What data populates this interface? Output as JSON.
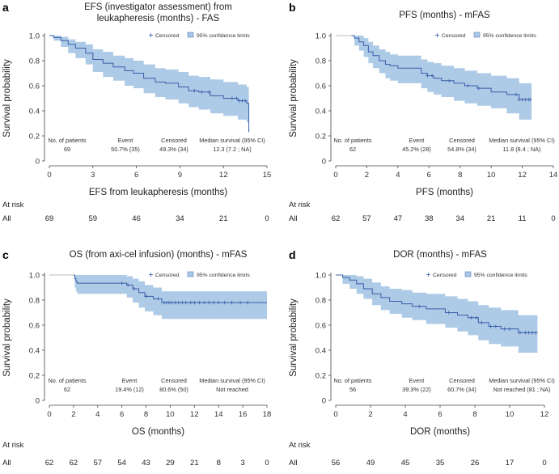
{
  "chart_data": [
    {
      "type": "line",
      "panel_letter": "a",
      "title_lines": [
        "EFS (investigator assessment) from",
        "leukapheresis (months) - FAS"
      ],
      "xlabel": "EFS from leukapheresis (months)",
      "ylabel": "Survival probability",
      "xlim": [
        0,
        15
      ],
      "xticks": [
        0,
        3,
        6,
        9,
        12,
        15
      ],
      "ylim": [
        0,
        1
      ],
      "yticks": [
        "0",
        "0.2",
        "0.4",
        "0.6",
        "0.8",
        "1.0"
      ],
      "legend": {
        "censored": "Censored",
        "ci": "95% confidence limits"
      },
      "colors": {
        "line": "#3a5fa8",
        "band": "#a9c7e6",
        "ref": "#bdbdbd"
      },
      "series": {
        "name": "Kaplan-Meier estimate",
        "x": [
          0,
          0.3,
          0.8,
          1.3,
          1.8,
          2.5,
          3.0,
          3.7,
          4.4,
          5.2,
          5.8,
          6.5,
          7.3,
          8.0,
          8.9,
          9.6,
          10.3,
          11.1,
          12.0,
          13.0,
          13.6,
          13.75
        ],
        "y": [
          1.0,
          0.985,
          0.96,
          0.93,
          0.9,
          0.86,
          0.81,
          0.78,
          0.75,
          0.72,
          0.7,
          0.66,
          0.63,
          0.62,
          0.59,
          0.56,
          0.55,
          0.52,
          0.5,
          0.48,
          0.46,
          0.23
        ],
        "ci_lower": [
          1.0,
          0.96,
          0.91,
          0.86,
          0.82,
          0.77,
          0.71,
          0.67,
          0.64,
          0.6,
          0.58,
          0.54,
          0.51,
          0.49,
          0.46,
          0.43,
          0.41,
          0.38,
          0.36,
          0.33,
          0.31,
          0.1
        ],
        "ci_upper": [
          1.0,
          1.0,
          0.99,
          0.97,
          0.95,
          0.93,
          0.89,
          0.87,
          0.84,
          0.82,
          0.8,
          0.77,
          0.74,
          0.73,
          0.71,
          0.68,
          0.67,
          0.65,
          0.63,
          0.61,
          0.59,
          0.45
        ],
        "censored_x": [
          10.0,
          10.5,
          11.0,
          12.6,
          12.9,
          13.1,
          13.3,
          13.5
        ]
      },
      "stats": {
        "headers": [
          "No. of patients",
          "Event",
          "Censored",
          "Median survival (95% CI)"
        ],
        "values": [
          "69",
          "50.7% (35)",
          "49.3% (34)",
          "12.3 (7.2 ; NA)"
        ]
      },
      "at_risk": {
        "title": "At risk",
        "group": "All",
        "values": [
          "69",
          "59",
          "46",
          "34",
          "21",
          "0"
        ]
      }
    },
    {
      "type": "line",
      "panel_letter": "b",
      "title_lines": [
        "PFS (months) - mFAS"
      ],
      "xlabel": "PFS (months)",
      "ylabel": "Survival probability",
      "xlim": [
        0,
        14
      ],
      "xticks": [
        0,
        2,
        4,
        6,
        8,
        10,
        12,
        14
      ],
      "ylim": [
        0,
        1
      ],
      "yticks": [
        "0",
        "0.2",
        "0.4",
        "0.6",
        "0.8",
        "1.0"
      ],
      "legend": {
        "censored": "Censored",
        "ci": "95% confidence limits"
      },
      "colors": {
        "line": "#3a5fa8",
        "band": "#a9c7e6",
        "ref": "#bdbdbd"
      },
      "series": {
        "name": "Kaplan-Meier estimate",
        "x": [
          1.0,
          1.2,
          1.5,
          1.8,
          2.1,
          2.4,
          2.8,
          3.2,
          3.5,
          4.0,
          5.5,
          5.9,
          6.3,
          6.8,
          7.6,
          8.3,
          9.1,
          10.0,
          11.0,
          11.8,
          12.6
        ],
        "y": [
          1.0,
          0.98,
          0.95,
          0.92,
          0.87,
          0.84,
          0.8,
          0.77,
          0.76,
          0.74,
          0.7,
          0.68,
          0.66,
          0.64,
          0.62,
          0.6,
          0.58,
          0.55,
          0.53,
          0.49,
          0.49
        ],
        "ci_lower": [
          1.0,
          0.92,
          0.88,
          0.83,
          0.78,
          0.74,
          0.7,
          0.66,
          0.64,
          0.62,
          0.58,
          0.55,
          0.53,
          0.51,
          0.48,
          0.46,
          0.44,
          0.42,
          0.38,
          0.33,
          0.33
        ],
        "ci_upper": [
          1.0,
          1.0,
          1.0,
          0.98,
          0.95,
          0.92,
          0.89,
          0.87,
          0.85,
          0.84,
          0.81,
          0.79,
          0.78,
          0.76,
          0.74,
          0.72,
          0.7,
          0.68,
          0.66,
          0.62,
          0.62
        ],
        "censored_x": [
          5.9,
          6.2,
          7.3,
          8.5,
          9.2,
          11.6,
          11.8,
          12.0,
          12.2,
          12.4,
          12.5
        ]
      },
      "stats": {
        "headers": [
          "No. of patients",
          "Event",
          "Censored",
          "Median survival (95% CI)"
        ],
        "values": [
          "62",
          "45.2% (28)",
          "54.8% (34)",
          "11.8 (8.4 ; NA)"
        ]
      },
      "at_risk": {
        "title": "At risk",
        "group": "All",
        "values": [
          "62",
          "57",
          "47",
          "38",
          "34",
          "21",
          "11",
          "0"
        ]
      }
    },
    {
      "type": "line",
      "panel_letter": "c",
      "title_lines": [
        "OS (from axi-cel infusion) (months) - mFAS"
      ],
      "xlabel": "OS (months)",
      "ylabel": "Survival probability",
      "xlim": [
        0,
        18
      ],
      "xticks": [
        0,
        2,
        4,
        6,
        8,
        10,
        12,
        14,
        16,
        18
      ],
      "ylim": [
        0,
        1
      ],
      "yticks": [
        "0",
        "0.2",
        "0.4",
        "0.6",
        "0.8",
        "1.0"
      ],
      "legend": {
        "censored": "Censored",
        "ci": "95% confidence limits"
      },
      "colors": {
        "line": "#3a5fa8",
        "band": "#a9c7e6",
        "ref": "#bdbdbd"
      },
      "series": {
        "name": "Kaplan-Meier estimate",
        "x": [
          2.0,
          2.1,
          2.2,
          2.3,
          6.4,
          6.9,
          7.4,
          7.9,
          8.6,
          9.3,
          18.0
        ],
        "y": [
          1.0,
          0.97,
          0.95,
          0.935,
          0.92,
          0.89,
          0.86,
          0.83,
          0.81,
          0.78,
          0.78
        ],
        "ci_lower": [
          1.0,
          0.9,
          0.87,
          0.85,
          0.82,
          0.78,
          0.74,
          0.71,
          0.68,
          0.65,
          0.65
        ],
        "ci_upper": [
          1.0,
          1.0,
          1.0,
          1.0,
          0.99,
          0.97,
          0.95,
          0.92,
          0.9,
          0.87,
          0.87
        ],
        "censored_x": [
          6.0,
          6.5,
          7.0,
          8.0,
          9.0,
          9.5,
          9.7,
          9.9,
          10.1,
          10.4,
          10.7,
          11.0,
          11.3,
          11.7,
          12.0,
          12.4,
          12.8,
          13.2,
          13.6,
          14.0,
          14.5,
          15.1,
          15.8,
          16.4
        ]
      },
      "stats": {
        "headers": [
          "No. of patients",
          "Event",
          "Censored",
          "Median survival (95% CI)"
        ],
        "values": [
          "62",
          "19.4% (12)",
          "80.6% (50)",
          "Not reached"
        ]
      },
      "at_risk": {
        "title": "At risk",
        "group": "All",
        "values": [
          "62",
          "62",
          "57",
          "54",
          "43",
          "29",
          "21",
          "8",
          "3",
          "0"
        ]
      }
    },
    {
      "type": "line",
      "panel_letter": "d",
      "title_lines": [
        "DOR (months) - mFAS"
      ],
      "xlabel": "DOR (months)",
      "ylabel": "Survival probability",
      "xlim": [
        0,
        12
      ],
      "xticks": [
        0,
        2,
        4,
        6,
        8,
        10,
        12
      ],
      "ylim": [
        0,
        1
      ],
      "yticks": [
        "0",
        "0.2",
        "0.4",
        "0.6",
        "0.8",
        "1.0"
      ],
      "legend": {
        "censored": "Censored",
        "ci": "95% confidence limits"
      },
      "colors": {
        "line": "#3a5fa8",
        "band": "#a9c7e6",
        "ref": "#bdbdbd"
      },
      "series": {
        "name": "Kaplan-Meier estimate",
        "x": [
          0,
          0.4,
          0.8,
          1.2,
          1.6,
          2.1,
          2.6,
          3.1,
          3.8,
          4.4,
          5.2,
          6.3,
          7.0,
          7.6,
          8.2,
          8.8,
          9.5,
          10.5,
          11.6
        ],
        "y": [
          1.0,
          0.98,
          0.96,
          0.93,
          0.89,
          0.85,
          0.82,
          0.79,
          0.77,
          0.75,
          0.73,
          0.7,
          0.68,
          0.66,
          0.62,
          0.59,
          0.57,
          0.54,
          0.54
        ],
        "ci_lower": [
          1.0,
          0.93,
          0.89,
          0.85,
          0.81,
          0.76,
          0.72,
          0.69,
          0.66,
          0.64,
          0.61,
          0.58,
          0.55,
          0.52,
          0.48,
          0.45,
          0.43,
          0.38,
          0.38
        ],
        "ci_upper": [
          1.0,
          1.0,
          1.0,
          0.99,
          0.97,
          0.94,
          0.91,
          0.89,
          0.88,
          0.86,
          0.85,
          0.83,
          0.81,
          0.79,
          0.76,
          0.74,
          0.72,
          0.68,
          0.68
        ],
        "censored_x": [
          4.8,
          6.5,
          7.8,
          8.1,
          8.4,
          8.9,
          9.2,
          9.7,
          10.0,
          10.6,
          10.9,
          11.1,
          11.3,
          11.5
        ]
      },
      "stats": {
        "headers": [
          "No. of patients",
          "Event",
          "Censored",
          "Median survival (95% CI)"
        ],
        "values": [
          "56",
          "39.3% (22)",
          "60.7% (34)",
          "Not reached (81 ; NA)"
        ]
      },
      "at_risk": {
        "title": "At risk",
        "group": "All",
        "values": [
          "56",
          "49",
          "45",
          "35",
          "26",
          "17",
          "0"
        ]
      }
    }
  ]
}
